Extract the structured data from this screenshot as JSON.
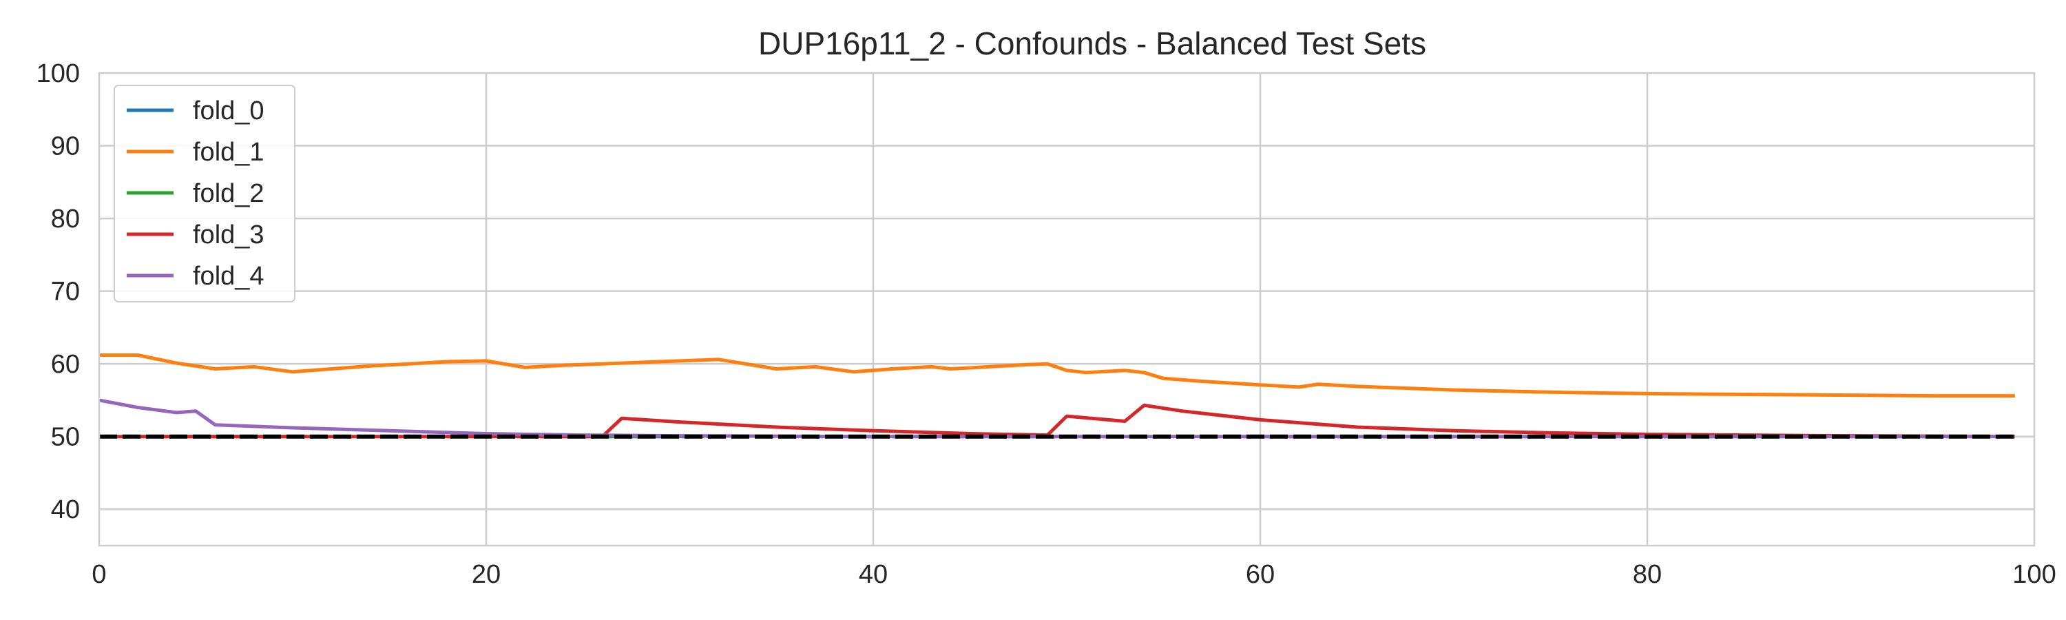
{
  "chart_data": {
    "type": "line",
    "title": "DUP16p11_2 - Confounds - Balanced Test Sets",
    "xlabel": "",
    "ylabel": "",
    "xlim": [
      0,
      100
    ],
    "ylim": [
      35,
      100
    ],
    "xticks": [
      0,
      20,
      40,
      60,
      80,
      100
    ],
    "yticks": [
      40,
      50,
      60,
      70,
      80,
      90,
      100
    ],
    "grid": true,
    "legend_position": "top-left",
    "baseline": {
      "y": 50,
      "style": "dashed",
      "color": "#000000"
    },
    "series": [
      {
        "name": "fold_0",
        "color": "#1f77b4",
        "x": [
          0,
          99
        ],
        "y": [
          50,
          50
        ]
      },
      {
        "name": "fold_1",
        "color": "#ff7f0e",
        "x": [
          0,
          2,
          4,
          6,
          8,
          10,
          12,
          14,
          16,
          18,
          20,
          22,
          24,
          26,
          28,
          30,
          32,
          35,
          37,
          39,
          41,
          43,
          44,
          46,
          48,
          49,
          50,
          51,
          53,
          54,
          55,
          57,
          60,
          62,
          63,
          65,
          70,
          75,
          80,
          85,
          90,
          95,
          99
        ],
        "y": [
          61.2,
          61.2,
          60.1,
          59.3,
          59.6,
          58.9,
          59.3,
          59.7,
          60.0,
          60.3,
          60.4,
          59.5,
          59.8,
          60.0,
          60.2,
          60.4,
          60.6,
          59.3,
          59.6,
          58.9,
          59.3,
          59.6,
          59.3,
          59.6,
          59.9,
          60.0,
          59.1,
          58.8,
          59.1,
          58.8,
          58.0,
          57.6,
          57.1,
          56.8,
          57.2,
          56.9,
          56.4,
          56.1,
          55.9,
          55.8,
          55.7,
          55.6,
          55.6
        ]
      },
      {
        "name": "fold_2",
        "color": "#2ca02c",
        "x": [
          0,
          99
        ],
        "y": [
          50,
          50
        ]
      },
      {
        "name": "fold_3",
        "color": "#d62728",
        "x": [
          0,
          26,
          27,
          30,
          35,
          40,
          45,
          49,
          50,
          53,
          54,
          56,
          60,
          65,
          70,
          75,
          80,
          85,
          90,
          99
        ],
        "y": [
          50,
          50,
          52.5,
          52.0,
          51.3,
          50.8,
          50.4,
          50.2,
          52.8,
          52.1,
          54.3,
          53.5,
          52.3,
          51.3,
          50.8,
          50.5,
          50.3,
          50.2,
          50.1,
          50.0
        ]
      },
      {
        "name": "fold_4",
        "color": "#9467bd",
        "x": [
          0,
          2,
          4,
          5,
          6,
          10,
          15,
          20,
          25,
          30,
          40,
          50,
          60,
          99
        ],
        "y": [
          55.0,
          54.0,
          53.3,
          53.5,
          51.6,
          51.2,
          50.8,
          50.4,
          50.2,
          50.1,
          50.0,
          50.0,
          50.0,
          50.0
        ]
      }
    ]
  }
}
